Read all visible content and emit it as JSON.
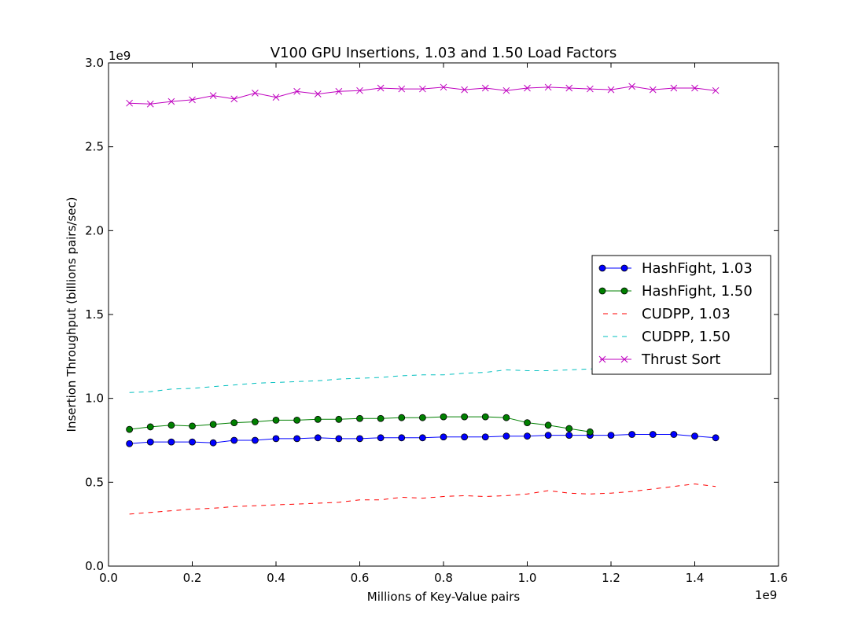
{
  "chart_data": {
    "type": "line",
    "title": "V100 GPU Insertions, 1.03 and 1.50 Load Factors",
    "xlabel": "Millions of Key-Value pairs",
    "ylabel": "Insertion Throughput (billions pairs/sec)",
    "x_offset_label": "1e9",
    "y_offset_label": "1e9",
    "xlim": [
      0.0,
      1.6
    ],
    "ylim": [
      0.0,
      3.0
    ],
    "x_ticks": [
      "0.0",
      "0.2",
      "0.4",
      "0.6",
      "0.8",
      "1.0",
      "1.2",
      "1.4",
      "1.6"
    ],
    "y_ticks": [
      "0.0",
      "0.5",
      "1.0",
      "1.5",
      "2.0",
      "2.5",
      "3.0"
    ],
    "grid": false,
    "legend_position": "center-right",
    "series": [
      {
        "name": "HashFight, 1.03",
        "color": "#0000ff",
        "style": "solid-circle",
        "x": [
          0.05,
          0.1,
          0.15,
          0.2,
          0.25,
          0.3,
          0.35,
          0.4,
          0.45,
          0.5,
          0.55,
          0.6,
          0.65,
          0.7,
          0.75,
          0.8,
          0.85,
          0.9,
          0.95,
          1.0,
          1.05,
          1.1,
          1.15,
          1.2,
          1.25,
          1.3,
          1.35,
          1.4,
          1.45
        ],
        "y": [
          0.73,
          0.74,
          0.74,
          0.74,
          0.735,
          0.75,
          0.75,
          0.76,
          0.76,
          0.765,
          0.76,
          0.76,
          0.765,
          0.765,
          0.765,
          0.77,
          0.77,
          0.77,
          0.775,
          0.775,
          0.78,
          0.78,
          0.78,
          0.78,
          0.785,
          0.785,
          0.785,
          0.775,
          0.765
        ]
      },
      {
        "name": "HashFight, 1.50",
        "color": "#008000",
        "style": "solid-circle",
        "x": [
          0.05,
          0.1,
          0.15,
          0.2,
          0.25,
          0.3,
          0.35,
          0.4,
          0.45,
          0.5,
          0.55,
          0.6,
          0.65,
          0.7,
          0.75,
          0.8,
          0.85,
          0.9,
          0.95,
          1.0,
          1.05,
          1.1,
          1.15
        ],
        "y": [
          0.815,
          0.83,
          0.84,
          0.835,
          0.845,
          0.855,
          0.86,
          0.87,
          0.87,
          0.875,
          0.875,
          0.88,
          0.88,
          0.885,
          0.885,
          0.89,
          0.89,
          0.89,
          0.885,
          0.855,
          0.84,
          0.82,
          0.8
        ]
      },
      {
        "name": "CUDPP, 1.03",
        "color": "#ff0000",
        "style": "dashed",
        "x": [
          0.05,
          0.1,
          0.15,
          0.2,
          0.25,
          0.3,
          0.35,
          0.4,
          0.45,
          0.5,
          0.55,
          0.6,
          0.65,
          0.7,
          0.75,
          0.8,
          0.85,
          0.9,
          0.95,
          1.0,
          1.05,
          1.1,
          1.15,
          1.2,
          1.25,
          1.3,
          1.35,
          1.4,
          1.45
        ],
        "y": [
          0.31,
          0.32,
          0.33,
          0.34,
          0.345,
          0.355,
          0.36,
          0.365,
          0.37,
          0.375,
          0.38,
          0.395,
          0.395,
          0.41,
          0.405,
          0.415,
          0.42,
          0.415,
          0.42,
          0.43,
          0.45,
          0.435,
          0.43,
          0.435,
          0.445,
          0.46,
          0.475,
          0.49,
          0.475
        ]
      },
      {
        "name": "CUDPP, 1.50",
        "color": "#00bfbf",
        "style": "dashed",
        "x": [
          0.05,
          0.1,
          0.15,
          0.2,
          0.25,
          0.3,
          0.35,
          0.4,
          0.45,
          0.5,
          0.55,
          0.6,
          0.65,
          0.7,
          0.75,
          0.8,
          0.85,
          0.9,
          0.95,
          1.0,
          1.05,
          1.1,
          1.15,
          1.2
        ],
        "y": [
          1.035,
          1.04,
          1.055,
          1.06,
          1.07,
          1.08,
          1.09,
          1.095,
          1.1,
          1.105,
          1.115,
          1.12,
          1.125,
          1.135,
          1.14,
          1.14,
          1.15,
          1.155,
          1.17,
          1.165,
          1.165,
          1.17,
          1.175,
          1.18
        ]
      },
      {
        "name": "Thrust Sort",
        "color": "#bf00bf",
        "style": "solid-x",
        "x": [
          0.05,
          0.1,
          0.15,
          0.2,
          0.25,
          0.3,
          0.35,
          0.4,
          0.45,
          0.5,
          0.55,
          0.6,
          0.65,
          0.7,
          0.75,
          0.8,
          0.85,
          0.9,
          0.95,
          1.0,
          1.05,
          1.1,
          1.15,
          1.2,
          1.25,
          1.3,
          1.35,
          1.4,
          1.45
        ],
        "y": [
          2.76,
          2.755,
          2.77,
          2.78,
          2.805,
          2.785,
          2.82,
          2.795,
          2.83,
          2.815,
          2.83,
          2.835,
          2.85,
          2.845,
          2.845,
          2.855,
          2.84,
          2.85,
          2.835,
          2.85,
          2.855,
          2.85,
          2.845,
          2.84,
          2.86,
          2.84,
          2.85,
          2.85,
          2.835
        ]
      }
    ]
  }
}
